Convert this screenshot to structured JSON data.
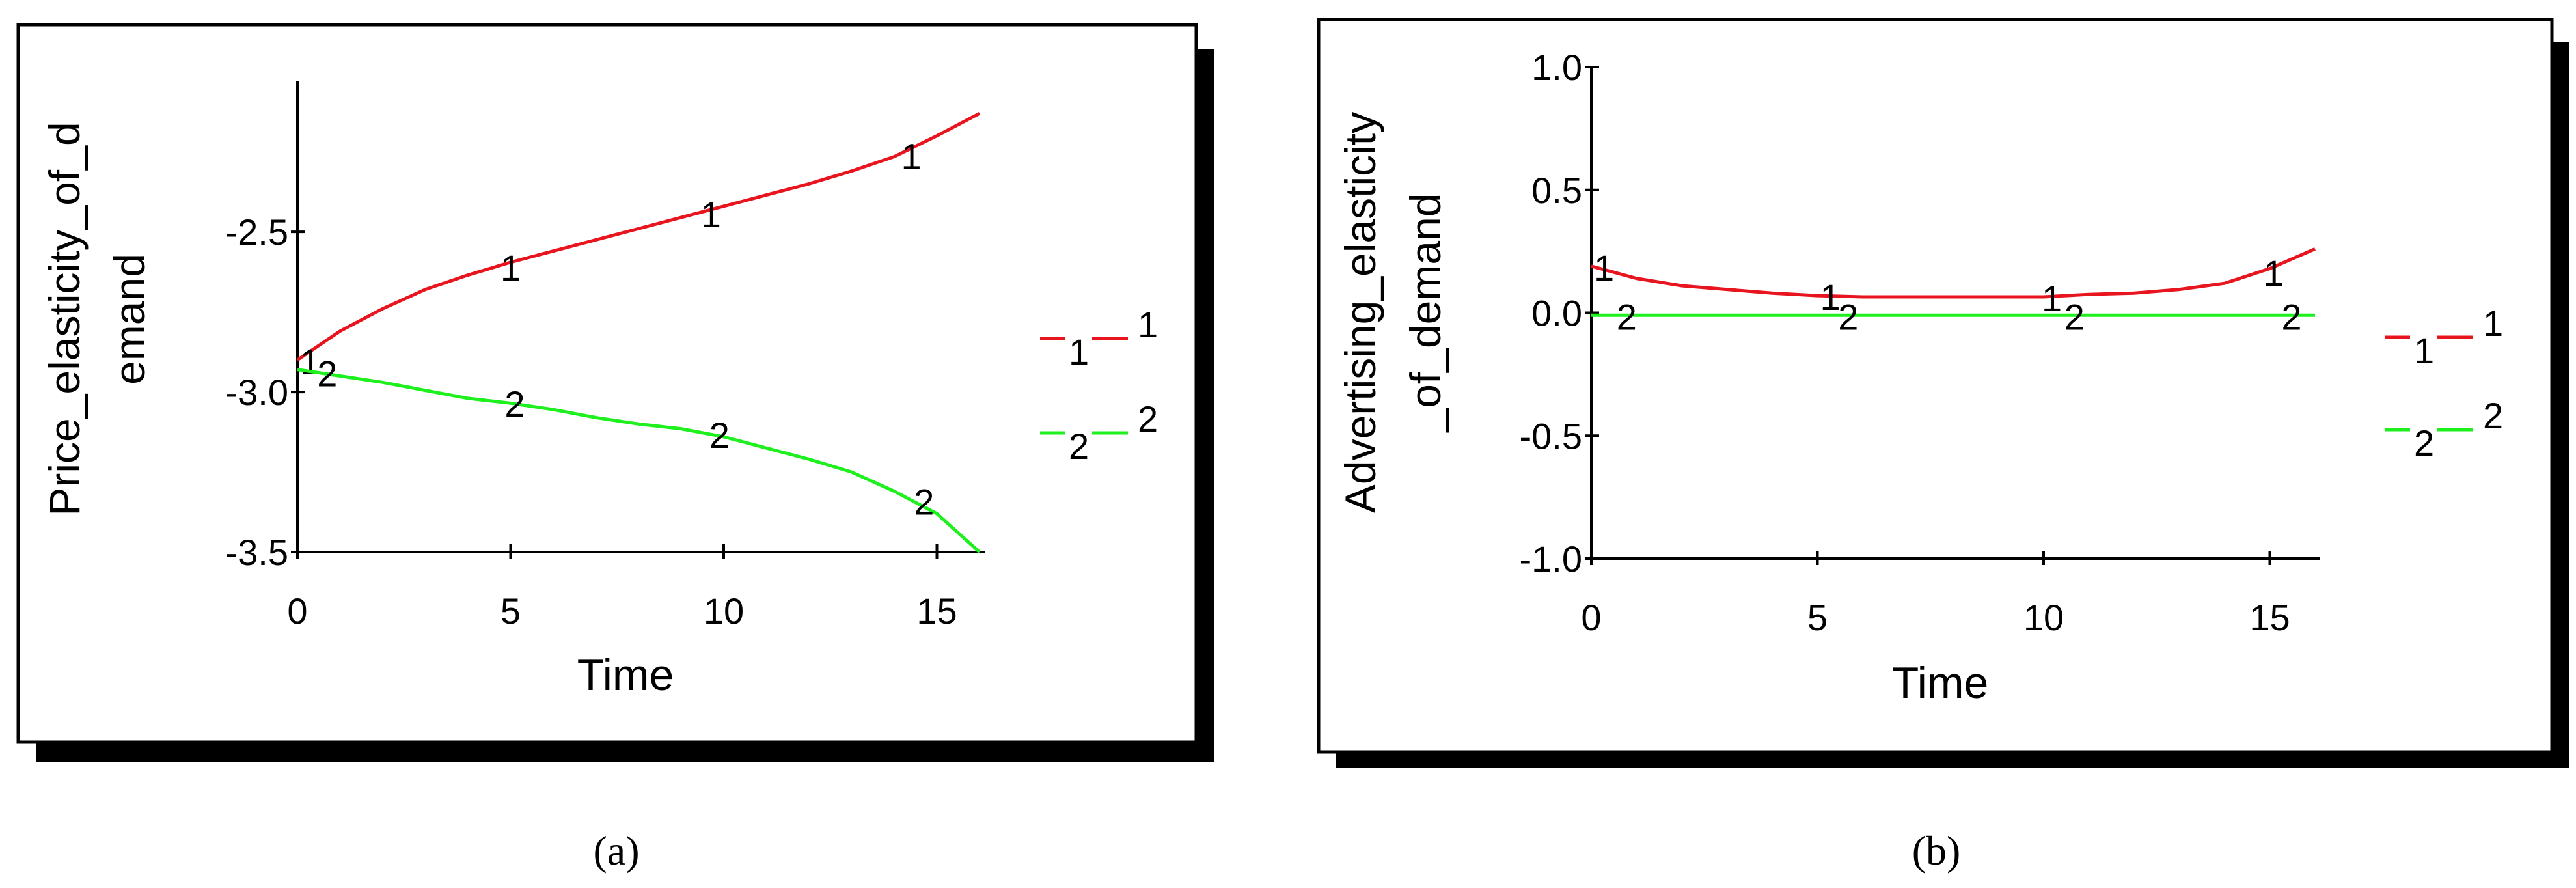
{
  "panels": [
    {
      "caption": "(a)",
      "ylabel_lines": [
        "Price_elasticity_of_d",
        "emand"
      ],
      "xlabel": "Time",
      "xlim": [
        0,
        16
      ],
      "ylim": [
        -3.5,
        -2.03
      ],
      "yticks": [
        -3.5,
        -3.0,
        -2.5
      ],
      "yticklabels": [
        "-3.5",
        "-3.0",
        "-2.5"
      ],
      "xticks": [
        0,
        5,
        10,
        15
      ],
      "xticklabels": [
        "0",
        "5",
        "10",
        "15"
      ],
      "legend": [
        {
          "marker": "1",
          "key": "1"
        },
        {
          "marker": "2",
          "key": "2"
        }
      ]
    },
    {
      "caption": "(b)",
      "ylabel_lines": [
        "Advertising_elasticity",
        "_of_demand"
      ],
      "xlabel": "Time",
      "xlim": [
        0,
        16
      ],
      "ylim": [
        -1.0,
        1.0
      ],
      "yticks": [
        -1.0,
        -0.5,
        0.0,
        0.5,
        1.0
      ],
      "yticklabels": [
        "-1.0",
        "-0.5",
        "0.0",
        "0.5",
        "1.0"
      ],
      "xticks": [
        0,
        5,
        10,
        15
      ],
      "xticklabels": [
        "0",
        "5",
        "10",
        "15"
      ],
      "legend": [
        {
          "marker": "1",
          "key": "1"
        },
        {
          "marker": "2",
          "key": "2"
        }
      ]
    }
  ],
  "chart_data": [
    {
      "type": "line",
      "title": "",
      "xlabel": "Time",
      "ylabel": "Price_elasticity_of_demand",
      "xlim": [
        0,
        16
      ],
      "ylim": [
        -3.5,
        -2.03
      ],
      "grid": false,
      "legend_position": "right",
      "series": [
        {
          "name": "1",
          "color": "#e8141e",
          "x": [
            0,
            1,
            2,
            3,
            4,
            5,
            6,
            7,
            8,
            9,
            10,
            11,
            12,
            13,
            14,
            15,
            16
          ],
          "y": [
            -2.9,
            -2.81,
            -2.74,
            -2.68,
            -2.635,
            -2.595,
            -2.56,
            -2.525,
            -2.49,
            -2.455,
            -2.42,
            -2.385,
            -2.35,
            -2.31,
            -2.265,
            -2.2,
            -2.13
          ],
          "markers": [
            {
              "label": "1",
              "x": 0
            },
            {
              "label": "1",
              "x": 4.7
            },
            {
              "label": "1",
              "x": 9.4
            },
            {
              "label": "1",
              "x": 14.1
            }
          ]
        },
        {
          "name": "2",
          "color": "#1ef01e",
          "x": [
            0,
            1,
            2,
            3,
            4,
            5,
            6,
            7,
            8,
            9,
            10,
            11,
            12,
            13,
            14,
            15,
            16
          ],
          "y": [
            -2.93,
            -2.95,
            -2.97,
            -2.995,
            -3.02,
            -3.035,
            -3.055,
            -3.08,
            -3.1,
            -3.115,
            -3.14,
            -3.175,
            -3.21,
            -3.25,
            -3.31,
            -3.38,
            -3.5
          ],
          "markers": [
            {
              "label": "2",
              "x": 0.4
            },
            {
              "label": "2",
              "x": 4.8
            },
            {
              "label": "2",
              "x": 9.6
            },
            {
              "label": "2",
              "x": 14.4
            }
          ]
        }
      ]
    },
    {
      "type": "line",
      "title": "",
      "xlabel": "Time",
      "ylabel": "Advertising_elasticity_of_demand",
      "xlim": [
        0,
        16
      ],
      "ylim": [
        -1.0,
        1.0
      ],
      "grid": false,
      "legend_position": "right",
      "series": [
        {
          "name": "1",
          "color": "#e8141e",
          "x": [
            0,
            1,
            2,
            3,
            4,
            5,
            6,
            7,
            8,
            9,
            10,
            11,
            12,
            13,
            14,
            15,
            16
          ],
          "y": [
            0.19,
            0.14,
            0.11,
            0.095,
            0.08,
            0.07,
            0.065,
            0.065,
            0.065,
            0.065,
            0.065,
            0.075,
            0.08,
            0.095,
            0.12,
            0.18,
            0.26
          ],
          "markers": [
            {
              "label": "1",
              "x": 0
            },
            {
              "label": "1",
              "x": 5.0
            },
            {
              "label": "1",
              "x": 9.9
            },
            {
              "label": "1",
              "x": 14.8
            }
          ]
        },
        {
          "name": "2",
          "color": "#1ef01e",
          "x": [
            0,
            16
          ],
          "y": [
            -0.01,
            -0.01
          ],
          "markers": [
            {
              "label": "2",
              "x": 0.5
            },
            {
              "label": "2",
              "x": 5.4
            },
            {
              "label": "2",
              "x": 10.4
            },
            {
              "label": "2",
              "x": 15.2
            }
          ]
        }
      ]
    }
  ]
}
